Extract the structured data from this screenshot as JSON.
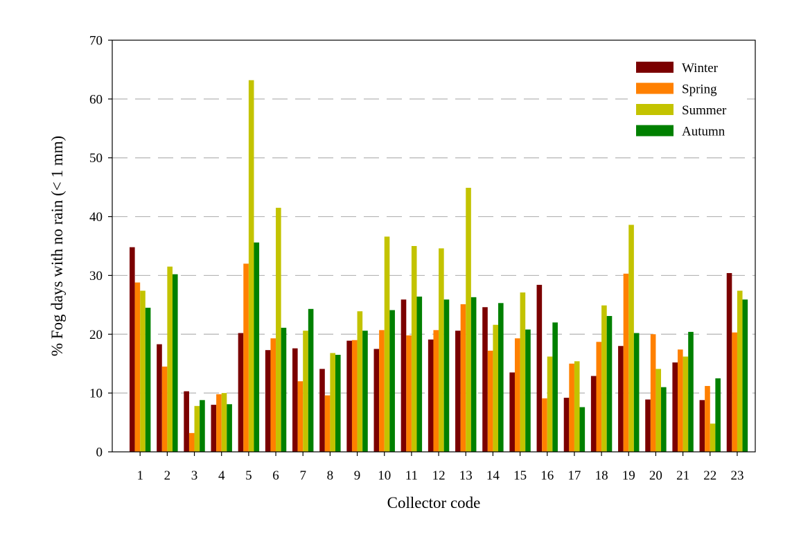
{
  "chart_data": {
    "type": "bar",
    "title": "",
    "xlabel": "Collector code",
    "ylabel": "% Fog days with no rain (< 1 mm)",
    "ylim": [
      0,
      70
    ],
    "yticks": [
      0,
      10,
      20,
      30,
      40,
      50,
      60,
      70
    ],
    "grid": "horizontal dashed",
    "legend": "top-right",
    "categories": [
      "1",
      "2",
      "3",
      "4",
      "5",
      "6",
      "7",
      "8",
      "9",
      "10",
      "11",
      "12",
      "13",
      "14",
      "15",
      "16",
      "17",
      "18",
      "19",
      "20",
      "21",
      "22",
      "23"
    ],
    "series": [
      {
        "name": "Winter",
        "color": "#7b0000",
        "values": [
          34.8,
          18.3,
          10.3,
          8.0,
          20.2,
          17.3,
          17.6,
          14.1,
          18.9,
          17.5,
          25.9,
          19.1,
          20.6,
          24.6,
          13.5,
          28.4,
          9.2,
          12.9,
          18.0,
          8.9,
          15.2,
          8.8,
          30.4
        ]
      },
      {
        "name": "Spring",
        "color": "#ff8000",
        "values": [
          28.8,
          14.5,
          3.2,
          9.8,
          32.0,
          19.3,
          12.0,
          9.6,
          19.0,
          20.7,
          19.8,
          20.7,
          25.1,
          17.2,
          19.3,
          9.1,
          15.0,
          18.7,
          30.3,
          20.0,
          17.4,
          11.2,
          20.3
        ]
      },
      {
        "name": "Summer",
        "color": "#c3c300",
        "values": [
          27.4,
          31.5,
          7.8,
          10.0,
          63.2,
          41.5,
          20.6,
          16.8,
          23.9,
          36.6,
          35.0,
          34.6,
          44.9,
          21.6,
          27.1,
          16.2,
          15.4,
          24.9,
          38.6,
          14.1,
          16.2,
          4.8,
          27.4
        ]
      },
      {
        "name": "Autumn",
        "color": "#008000",
        "values": [
          24.5,
          30.2,
          8.8,
          8.1,
          35.6,
          21.1,
          24.3,
          16.5,
          20.6,
          24.1,
          26.4,
          25.9,
          26.3,
          25.3,
          20.8,
          22.0,
          7.6,
          23.1,
          20.2,
          11.0,
          20.4,
          12.5,
          25.9
        ]
      }
    ]
  }
}
